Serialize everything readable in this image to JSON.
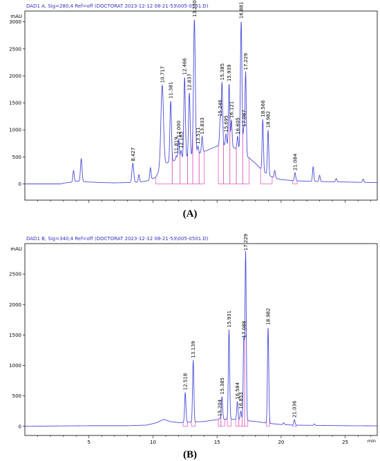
{
  "chart_data": [
    {
      "type": "line",
      "panel_tag": "(A)",
      "title": "DAD1 A, Sig=280,4 Ref=off (DOCTORAT 2023-12-12 08-21-53\\005-0501.D)",
      "ylabel": "mAU",
      "xlabel": "min",
      "xlim": [
        0,
        27.5
      ],
      "ylim": [
        -300,
        3200
      ],
      "x_ticks": [
        5,
        10,
        15,
        20,
        25
      ],
      "y_ticks": [
        0,
        500,
        1000,
        1500,
        2000,
        2500,
        3000
      ],
      "line_color": "#4a4ad8",
      "integration_color": "#e060c0",
      "baseline": [
        [
          0,
          0
        ],
        [
          2.8,
          0
        ],
        [
          3.0,
          15
        ],
        [
          3.4,
          25
        ],
        [
          3.8,
          40
        ],
        [
          4.0,
          50
        ],
        [
          4.4,
          45
        ],
        [
          5,
          35
        ],
        [
          6,
          25
        ],
        [
          7,
          20
        ],
        [
          8,
          25
        ],
        [
          9,
          35
        ],
        [
          9.6,
          60
        ],
        [
          10.2,
          120
        ],
        [
          10.5,
          250
        ],
        [
          11,
          380
        ],
        [
          11.5,
          420
        ],
        [
          12,
          450
        ],
        [
          12.5,
          480
        ],
        [
          13,
          520
        ],
        [
          13.5,
          560
        ],
        [
          14,
          600
        ],
        [
          14.5,
          650
        ],
        [
          15,
          700
        ],
        [
          15.5,
          720
        ],
        [
          16,
          700
        ],
        [
          16.5,
          650
        ],
        [
          17,
          580
        ],
        [
          17.5,
          480
        ],
        [
          18,
          380
        ],
        [
          18.5,
          260
        ],
        [
          19,
          160
        ],
        [
          19.5,
          110
        ],
        [
          20,
          80
        ],
        [
          21,
          60
        ],
        [
          22,
          50
        ],
        [
          23,
          45
        ],
        [
          24,
          40
        ],
        [
          25,
          35
        ],
        [
          26,
          30
        ],
        [
          27.5,
          25
        ]
      ],
      "peaks": [
        {
          "rt": 3.8,
          "height": 250,
          "width": 0.05
        },
        {
          "rt": 4.4,
          "height": 470,
          "width": 0.06
        },
        {
          "rt": 8.427,
          "height": 380,
          "width": 0.07,
          "label": "8.427"
        },
        {
          "rt": 8.9,
          "height": 170,
          "width": 0.05
        },
        {
          "rt": 9.8,
          "height": 300,
          "width": 0.05
        },
        {
          "rt": 10.717,
          "height": 1830,
          "width": 0.1,
          "label": "10.717"
        },
        {
          "rt": 11.381,
          "height": 1540,
          "width": 0.06,
          "label": "11.381"
        },
        {
          "rt": 11.819,
          "height": 520,
          "width": 0.05,
          "label": "11.819"
        },
        {
          "rt": 12.0,
          "height": 820,
          "width": 0.05,
          "label": "12.000"
        },
        {
          "rt": 12.183,
          "height": 620,
          "width": 0.05,
          "label": "12.183"
        },
        {
          "rt": 12.466,
          "height": 1980,
          "width": 0.06,
          "label": "12.466"
        },
        {
          "rt": 12.837,
          "height": 1690,
          "width": 0.06,
          "label": "12.837"
        },
        {
          "rt": 13.23,
          "height": 3050,
          "width": 0.07,
          "label": "13.230"
        },
        {
          "rt": 13.511,
          "height": 700,
          "width": 0.05,
          "label": "13.511"
        },
        {
          "rt": 13.833,
          "height": 880,
          "width": 0.05,
          "label": "13.833"
        },
        {
          "rt": 15.246,
          "height": 1210,
          "width": 0.05,
          "label": "15.246"
        },
        {
          "rt": 15.385,
          "height": 1880,
          "width": 0.05,
          "label": "15.385"
        },
        {
          "rt": 15.695,
          "height": 920,
          "width": 0.05,
          "label": "15.695"
        },
        {
          "rt": 15.939,
          "height": 1860,
          "width": 0.05,
          "label": "15.939"
        },
        {
          "rt": 16.121,
          "height": 1180,
          "width": 0.05,
          "label": "16.121"
        },
        {
          "rt": 16.605,
          "height": 880,
          "width": 0.05,
          "label": "16.605"
        },
        {
          "rt": 16.881,
          "height": 3020,
          "width": 0.06,
          "label": "16.881"
        },
        {
          "rt": 17.087,
          "height": 1020,
          "width": 0.05,
          "label": "17.087"
        },
        {
          "rt": 17.229,
          "height": 2070,
          "width": 0.05,
          "label": "17.229"
        },
        {
          "rt": 18.566,
          "height": 1200,
          "width": 0.05,
          "label": "18.566"
        },
        {
          "rt": 18.982,
          "height": 1000,
          "width": 0.05,
          "label": "18.982"
        },
        {
          "rt": 19.5,
          "height": 250,
          "width": 0.05
        },
        {
          "rt": 21.084,
          "height": 210,
          "width": 0.05,
          "label": "21.084"
        },
        {
          "rt": 22.5,
          "height": 320,
          "width": 0.05
        },
        {
          "rt": 23.0,
          "height": 160,
          "width": 0.05
        },
        {
          "rt": 24.3,
          "height": 100,
          "width": 0.05
        },
        {
          "rt": 26.4,
          "height": 90,
          "width": 0.05
        }
      ],
      "integration_segments": [
        [
          10.2,
          11.5
        ],
        [
          11.5,
          12.1
        ],
        [
          12.1,
          12.7
        ],
        [
          12.7,
          13.1
        ],
        [
          13.1,
          13.6
        ],
        [
          13.6,
          14.0
        ],
        [
          15.1,
          15.5
        ],
        [
          15.5,
          16.0
        ],
        [
          16.0,
          16.5
        ],
        [
          16.5,
          17.0
        ],
        [
          17.0,
          17.5
        ],
        [
          18.4,
          19.3
        ],
        [
          20.9,
          21.25
        ]
      ]
    },
    {
      "type": "line",
      "panel_tag": "(B)",
      "title": "DAD1 B, Sig=340,4 Ref=off (DOCTORAT 2023-12-12 08-21-53\\005-0501.D)",
      "ylabel": "mAU",
      "xlabel": "min",
      "xlim": [
        0,
        27.5
      ],
      "ylim": [
        -150,
        3000
      ],
      "x_ticks": [
        5,
        10,
        15,
        20,
        25
      ],
      "y_ticks": [
        0,
        500,
        1000,
        1500,
        2000,
        2500
      ],
      "line_color": "#4a4ad8",
      "integration_color": "#e060c0",
      "baseline": [
        [
          0,
          0
        ],
        [
          2,
          5
        ],
        [
          5,
          10
        ],
        [
          8,
          10
        ],
        [
          9.5,
          20
        ],
        [
          10.3,
          60
        ],
        [
          10.8,
          120
        ],
        [
          11.3,
          80
        ],
        [
          12,
          60
        ],
        [
          13,
          70
        ],
        [
          14,
          80
        ],
        [
          15,
          110
        ],
        [
          16,
          120
        ],
        [
          17,
          100
        ],
        [
          18,
          80
        ],
        [
          19,
          50
        ],
        [
          20,
          30
        ],
        [
          21,
          20
        ],
        [
          23,
          15
        ],
        [
          25,
          10
        ],
        [
          27.5,
          8
        ]
      ],
      "peaks": [
        {
          "rt": 10.7,
          "height": 100,
          "width": 0.12
        },
        {
          "rt": 12.518,
          "height": 560,
          "width": 0.05,
          "label": "12.518"
        },
        {
          "rt": 13.139,
          "height": 1090,
          "width": 0.05,
          "label": "13.139"
        },
        {
          "rt": 15.204,
          "height": 130,
          "width": 0.05,
          "label": "15.204"
        },
        {
          "rt": 15.385,
          "height": 490,
          "width": 0.05,
          "label": "15.385"
        },
        {
          "rt": 15.931,
          "height": 1590,
          "width": 0.05,
          "label": "15.931"
        },
        {
          "rt": 16.584,
          "height": 410,
          "width": 0.05,
          "label": "16.584"
        },
        {
          "rt": 16.853,
          "height": 250,
          "width": 0.05,
          "label": "16.853"
        },
        {
          "rt": 17.088,
          "height": 1420,
          "width": 0.05,
          "label": "17.088"
        },
        {
          "rt": 17.229,
          "height": 2850,
          "width": 0.05,
          "label": "17.229"
        },
        {
          "rt": 18.982,
          "height": 1630,
          "width": 0.05,
          "label": "18.982"
        },
        {
          "rt": 21.036,
          "height": 110,
          "width": 0.05,
          "label": "21.036"
        },
        {
          "rt": 20.2,
          "height": 60,
          "width": 0.05
        },
        {
          "rt": 22.6,
          "height": 40,
          "width": 0.05
        }
      ],
      "integration_segments": [
        [
          12.35,
          12.7
        ],
        [
          13.0,
          13.3
        ],
        [
          15.1,
          15.3
        ],
        [
          15.3,
          15.6
        ],
        [
          15.8,
          16.1
        ],
        [
          16.45,
          16.7
        ],
        [
          16.7,
          16.95
        ],
        [
          16.95,
          17.15
        ],
        [
          17.15,
          17.4
        ],
        [
          18.85,
          19.1
        ],
        [
          20.9,
          21.2
        ]
      ]
    }
  ]
}
